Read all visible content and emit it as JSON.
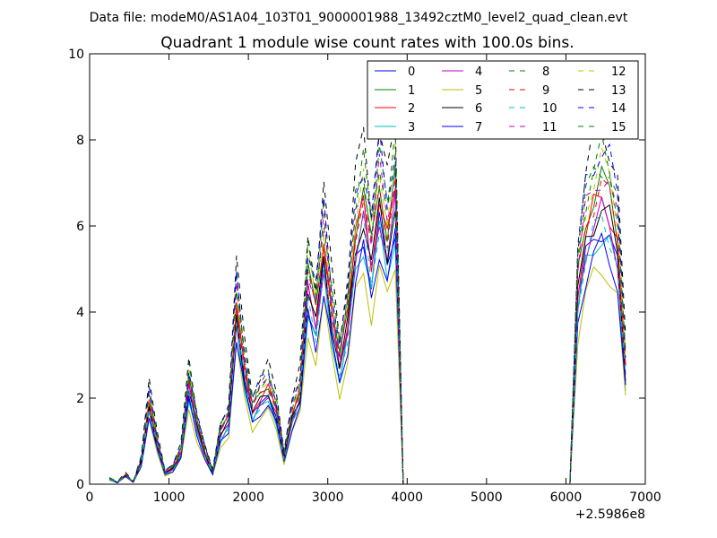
{
  "header": {
    "supertitle": "Data file: modeM0/AS1A04_103T01_9000001988_13492cztM0_level2_quad_clean.evt"
  },
  "chart_data": {
    "type": "line",
    "title": "Quadrant 1 module wise count rates with 100.0s bins.",
    "xlabel": "",
    "ylabel": "",
    "x_offset_label": "+2.5986e8",
    "xlim": [
      0,
      7000
    ],
    "ylim": [
      0,
      10
    ],
    "xticks": [
      0,
      1000,
      2000,
      3000,
      4000,
      5000,
      6000,
      7000
    ],
    "xtick_labels": [
      "0",
      "1000",
      "2000",
      "3000",
      "4000",
      "5000",
      "6000",
      "7000"
    ],
    "yticks": [
      0,
      2,
      4,
      6,
      8,
      10
    ],
    "ytick_labels": [
      "0",
      "2",
      "4",
      "6",
      "8",
      "10"
    ],
    "grid": false,
    "legend_position": "top-right",
    "legend_columns": 4,
    "x": [
      250,
      350,
      450,
      550,
      650,
      750,
      850,
      950,
      1050,
      1150,
      1250,
      1350,
      1450,
      1550,
      1650,
      1750,
      1850,
      1950,
      2050,
      2150,
      2250,
      2350,
      2450,
      2550,
      2650,
      2750,
      2850,
      2950,
      3050,
      3150,
      3250,
      3350,
      3450,
      3550,
      3650,
      3750,
      3850,
      3950,
      4050,
      4150,
      4250,
      4350,
      4450,
      4550,
      4650,
      4750,
      4850,
      4950,
      5050,
      5150,
      5250,
      5350,
      5450,
      5550,
      5650,
      5750,
      5850,
      5950,
      6050,
      6150,
      6250,
      6350,
      6450,
      6550,
      6650,
      6750
    ],
    "base_profile": [
      0.12,
      0.04,
      0.2,
      0.05,
      0.5,
      1.8,
      0.9,
      0.25,
      0.35,
      0.7,
      2.2,
      1.3,
      0.7,
      0.25,
      1.1,
      1.4,
      3.9,
      2.5,
      1.6,
      1.9,
      2.1,
      1.6,
      0.6,
      1.5,
      2.0,
      4.4,
      3.6,
      5.2,
      3.7,
      2.6,
      3.6,
      5.4,
      6.1,
      4.9,
      6.3,
      5.3,
      6.4,
      0.0,
      0.0,
      0.0,
      0.0,
      0.0,
      0.0,
      0.0,
      0.0,
      0.0,
      0.0,
      0.0,
      0.0,
      0.0,
      0.0,
      0.0,
      0.0,
      0.0,
      0.0,
      0.0,
      0.0,
      0.0,
      0.0,
      4.3,
      5.5,
      6.0,
      6.3,
      6.0,
      5.3,
      2.5
    ],
    "series": [
      {
        "name": "0",
        "color": "#0000ff",
        "dashed": false,
        "scale": 0.95
      },
      {
        "name": "1",
        "color": "#008000",
        "dashed": false,
        "scale": 1.12
      },
      {
        "name": "2",
        "color": "#ff0000",
        "dashed": false,
        "scale": 1.06
      },
      {
        "name": "3",
        "color": "#00bfbf",
        "dashed": false,
        "scale": 0.92
      },
      {
        "name": "4",
        "color": "#bf00bf",
        "dashed": false,
        "scale": 1.0
      },
      {
        "name": "5",
        "color": "#bfbf00",
        "dashed": false,
        "scale": 0.8
      },
      {
        "name": "6",
        "color": "#000000",
        "dashed": false,
        "scale": 1.02
      },
      {
        "name": "7",
        "color": "#0000ff",
        "dashed": false,
        "scale": 0.88
      },
      {
        "name": "8",
        "color": "#008000",
        "dashed": true,
        "scale": 1.2
      },
      {
        "name": "9",
        "color": "#ff0000",
        "dashed": true,
        "scale": 1.1
      },
      {
        "name": "10",
        "color": "#00bfbf",
        "dashed": true,
        "scale": 0.97
      },
      {
        "name": "11",
        "color": "#bf00bf",
        "dashed": true,
        "scale": 1.15
      },
      {
        "name": "12",
        "color": "#bfbf00",
        "dashed": true,
        "scale": 1.18
      },
      {
        "name": "13",
        "color": "#000000",
        "dashed": true,
        "scale": 1.32
      },
      {
        "name": "14",
        "color": "#0000ff",
        "dashed": true,
        "scale": 1.25
      },
      {
        "name": "15",
        "color": "#008000",
        "dashed": true,
        "scale": 1.22
      }
    ]
  }
}
